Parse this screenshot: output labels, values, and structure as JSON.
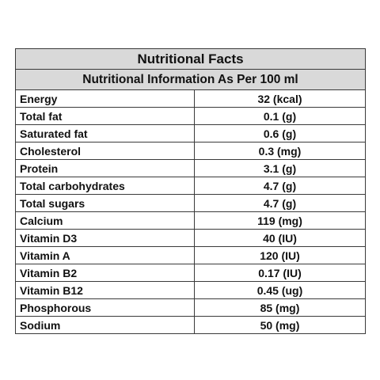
{
  "table": {
    "title": "Nutritional Facts",
    "subtitle": "Nutritional Information As Per 100 ml",
    "rows": [
      {
        "name": "Energy",
        "value": "32 (kcal)"
      },
      {
        "name": "Total fat",
        "value": "0.1 (g)"
      },
      {
        "name": "Saturated fat",
        "value": "0.6 (g)"
      },
      {
        "name": "Cholesterol",
        "value": "0.3 (mg)"
      },
      {
        "name": "Protein",
        "value": "3.1 (g)"
      },
      {
        "name": "Total carbohydrates",
        "value": "4.7 (g)"
      },
      {
        "name": "Total sugars",
        "value": "4.7 (g)"
      },
      {
        "name": "Calcium",
        "value": "119 (mg)"
      },
      {
        "name": "Vitamin D3",
        "value": "40 (IU)"
      },
      {
        "name": "Vitamin A",
        "value": "120 (IU)"
      },
      {
        "name": "Vitamin B2",
        "value": "0.17 (IU)"
      },
      {
        "name": "Vitamin B12",
        "value": "0.45 (ug)"
      },
      {
        "name": "Phosphorous",
        "value": "85 (mg)"
      },
      {
        "name": "Sodium",
        "value": "50 (mg)"
      }
    ]
  }
}
